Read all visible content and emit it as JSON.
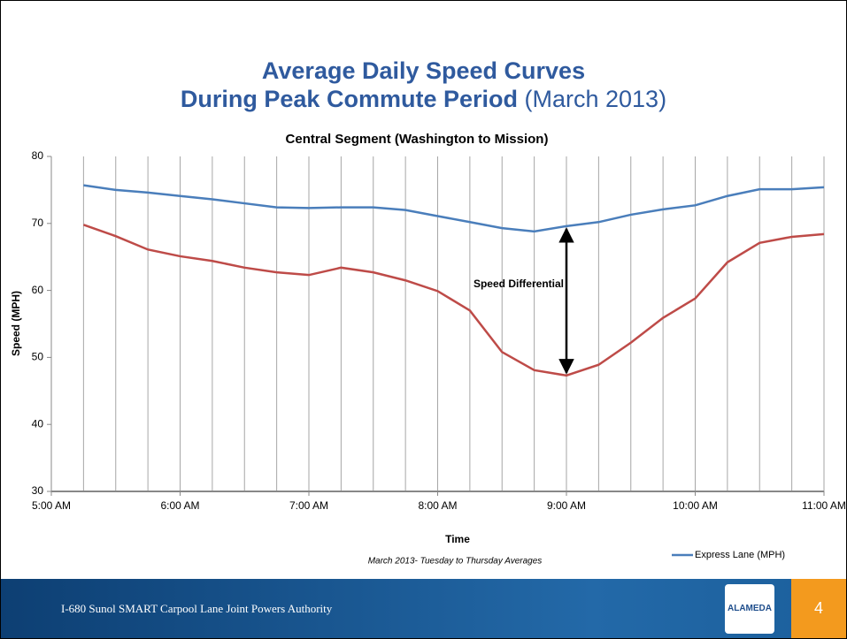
{
  "slide": {
    "title_line1": "Average Daily Speed Curves",
    "title_line2_bold": "During Peak Commute Period",
    "title_line2_rest": "(March 2013)",
    "footer": "I-680 Sunol SMART Carpool Lane Joint Powers Authority",
    "logo": "ALAMEDA",
    "page": "4"
  },
  "chart_data": {
    "type": "line",
    "title": "Central Segment (Washington to Mission)",
    "x_label": "Time",
    "y_label": "Speed (MPH)",
    "note": "March 2013- Tuesday to Thursday Averages",
    "annotation": "Speed Differential",
    "x": [
      5.25,
      5.5,
      5.75,
      6,
      6.25,
      6.5,
      6.75,
      7,
      7.25,
      7.5,
      7.75,
      8,
      8.25,
      8.5,
      8.75,
      9,
      9.25,
      9.5,
      9.75,
      10,
      10.25,
      10.5,
      10.75,
      11
    ],
    "series": [
      {
        "name": "Express Lane (MPH)",
        "color": "#4a7ebb",
        "values": [
          75.7,
          75.0,
          74.6,
          74.1,
          73.6,
          73.0,
          72.4,
          72.3,
          72.4,
          72.4,
          72.0,
          71.1,
          70.2,
          69.3,
          68.8,
          69.6,
          70.2,
          71.3,
          72.1,
          72.7,
          74.1,
          75.1,
          75.1,
          75.4
        ]
      },
      {
        "color": "#be4b48",
        "values": [
          69.8,
          68.1,
          66.1,
          65.1,
          64.4,
          63.4,
          62.7,
          62.3,
          63.4,
          62.7,
          61.5,
          59.9,
          57.0,
          50.8,
          48.1,
          47.3,
          48.9,
          52.2,
          55.9,
          58.8,
          64.2,
          67.1,
          68.0,
          68.4
        ]
      }
    ],
    "xlim": [
      5,
      11
    ],
    "xticks": [
      {
        "value": 5,
        "label": "5:00 AM"
      },
      {
        "value": 6,
        "label": "6:00 AM"
      },
      {
        "value": 7,
        "label": "7:00 AM"
      },
      {
        "value": 8,
        "label": "8:00 AM"
      },
      {
        "value": 9,
        "label": "9:00 AM"
      },
      {
        "value": 10,
        "label": "10:00 AM"
      },
      {
        "value": 11,
        "label": "11:00 AM"
      }
    ],
    "ylim": [
      30,
      80
    ],
    "yticks": [
      30,
      40,
      50,
      60,
      70,
      80
    ],
    "grid": true,
    "legend": "bottom-right"
  }
}
